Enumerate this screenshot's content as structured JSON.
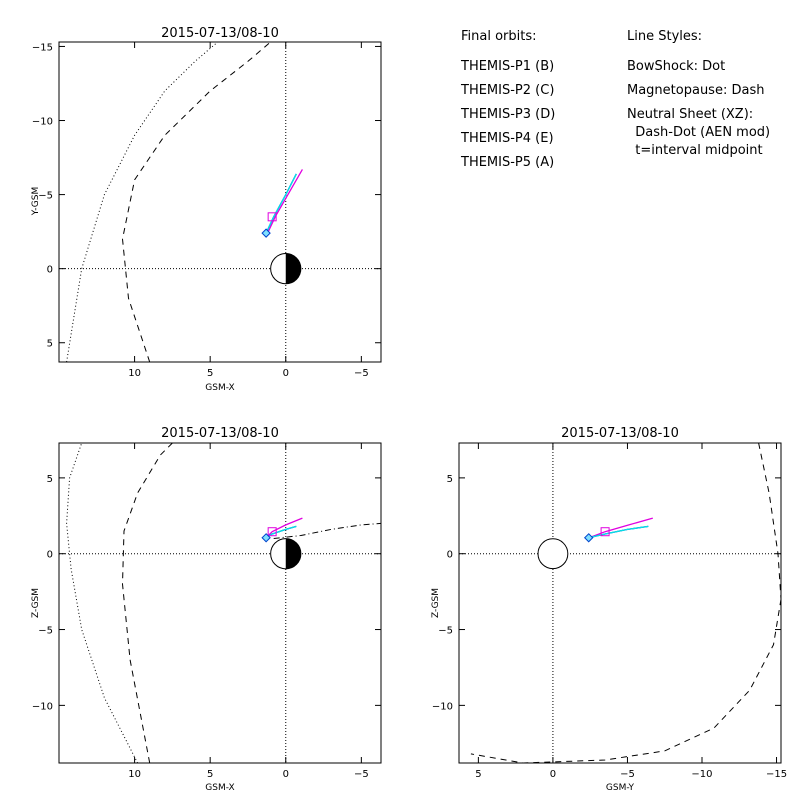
{
  "legend": {
    "orbits_header": "Final orbits:",
    "orbits": [
      {
        "label": "THEMIS-P1 (B)",
        "color": "#ff0000"
      },
      {
        "label": "THEMIS-P2 (C)",
        "color": "#00cc00"
      },
      {
        "label": "THEMIS-P3 (D)",
        "color": "#00e5e5"
      },
      {
        "label": "THEMIS-P4 (E)",
        "color": "#0000cc"
      },
      {
        "label": "THEMIS-P5 (A)",
        "color": "#e000e0"
      }
    ],
    "styles_header": "Line Styles:",
    "styles": [
      "BowShock: Dot",
      "Magnetopause: Dash",
      "Neutral Sheet (XZ):",
      "  Dash-Dot (AEN mod)",
      "  t=interval midpoint"
    ]
  },
  "chart_data": [
    {
      "type": "line",
      "title": "2015-07-13/08-10",
      "xlabel": "GSM-X",
      "ylabel": "Y-GSM",
      "xlim": [
        15,
        -6.3
      ],
      "ylim": [
        6.3,
        -15.3
      ],
      "xticks": [
        10,
        5,
        0,
        -5
      ],
      "xtick_labels": [
        "10",
        "5",
        "0",
        "−5"
      ],
      "yticks": [
        -15,
        -10,
        -5,
        0,
        5
      ],
      "ytick_labels": [
        "−15",
        "−10",
        "−5",
        "0",
        "5"
      ],
      "earth": "day-night",
      "boundaries": {
        "bowshock": {
          "x": [
            14.5,
            13.5,
            12,
            10,
            8,
            6,
            4.5
          ],
          "y": [
            6.3,
            0,
            -5,
            -9,
            -12,
            -14,
            -15.3
          ]
        },
        "magnetopause": {
          "x": [
            9,
            10.4,
            10.8,
            10,
            8,
            5,
            2.5,
            1
          ],
          "y": [
            6.3,
            2,
            -2,
            -6,
            -9,
            -12,
            -14,
            -15.3
          ]
        }
      },
      "series": [
        {
          "color": "#e000e0",
          "x": [
            1.2,
            0.7,
            -0.2,
            -1.1
          ],
          "y": [
            -2.4,
            -3.5,
            -5.1,
            -6.7
          ]
        },
        {
          "color": "#0000cc",
          "x": [
            1.3,
            0.8,
            0,
            -0.7
          ],
          "y": [
            -2.4,
            -3.5,
            -5,
            -6.4
          ]
        },
        {
          "color": "#00e5e5",
          "x": [
            1.3,
            0.8,
            0,
            -0.7
          ],
          "y": [
            -2.4,
            -3.5,
            -5,
            -6.4
          ]
        }
      ],
      "markers": [
        {
          "shape": "square",
          "color": "#e000e0",
          "x": 0.9,
          "y": -3.5
        },
        {
          "shape": "diamond",
          "color": "#00c0ff",
          "x": 1.3,
          "y": -2.4
        }
      ]
    },
    {
      "type": "line",
      "title": "2015-07-13/08-10",
      "xlabel": "GSM-X",
      "ylabel": "Z-GSM",
      "xlim": [
        15,
        -6.3
      ],
      "ylim": [
        -13.8,
        7.3
      ],
      "xticks": [
        10,
        5,
        0,
        -5
      ],
      "xtick_labels": [
        "10",
        "5",
        "0",
        "−5"
      ],
      "yticks": [
        5,
        0,
        -5,
        -10
      ],
      "ytick_labels": [
        "5",
        "0",
        "−5",
        "−10"
      ],
      "earth": "day-night",
      "boundaries": {
        "bowshock": {
          "x": [
            9.8,
            12,
            13.5,
            14.2,
            14.5,
            14.3,
            13.5
          ],
          "y": [
            -13.8,
            -9.5,
            -5,
            -1,
            2,
            5,
            7.3
          ]
        },
        "magnetopause": {
          "x": [
            9,
            10.3,
            10.8,
            10.7,
            9.8,
            8.3,
            7.5
          ],
          "y": [
            -13.8,
            -7,
            -2,
            1.5,
            4,
            6.5,
            7.3
          ]
        },
        "neutral_sheet": {
          "x": [
            0.8,
            -1,
            -3,
            -5,
            -6.3
          ],
          "y": [
            1.0,
            1.2,
            1.6,
            1.9,
            2.0
          ]
        }
      },
      "series": [
        {
          "color": "#e000e0",
          "x": [
            1.3,
            0.9,
            0,
            -1.1
          ],
          "y": [
            1.05,
            1.45,
            1.9,
            2.35
          ]
        },
        {
          "color": "#0000cc",
          "x": [
            1.3,
            0.9,
            0,
            -0.7
          ],
          "y": [
            1.05,
            1.3,
            1.6,
            1.8
          ]
        },
        {
          "color": "#00e5e5",
          "x": [
            1.3,
            0.9,
            0,
            -0.7
          ],
          "y": [
            1.05,
            1.3,
            1.6,
            1.8
          ]
        }
      ],
      "markers": [
        {
          "shape": "square",
          "color": "#e000e0",
          "x": 0.9,
          "y": 1.45
        },
        {
          "shape": "diamond",
          "color": "#00c0ff",
          "x": 1.3,
          "y": 1.05
        }
      ]
    },
    {
      "type": "line",
      "title": "2015-07-13/08-10",
      "xlabel": "GSM-Y",
      "ylabel": "Z-GSM",
      "xlim": [
        6.3,
        -15.3
      ],
      "ylim": [
        -13.8,
        7.3
      ],
      "xticks": [
        5,
        0,
        -5,
        -10,
        -15
      ],
      "xtick_labels": [
        "5",
        "0",
        "−5",
        "−10",
        "−15"
      ],
      "yticks": [
        5,
        0,
        -5,
        -10
      ],
      "ytick_labels": [
        "5",
        "0",
        "−5",
        "−10"
      ],
      "earth": "outline",
      "boundaries": {
        "magnetopause": {
          "x": [
            -13.8,
            -14.5,
            -15.1,
            -15.3
          ],
          "y": [
            7.3,
            4,
            0,
            -3
          ]
        },
        "magnetopause_lower": {
          "x": [
            -15.3,
            -14.8,
            -13.2,
            -10.8,
            -7.5,
            -3.5,
            2,
            5.5
          ],
          "y": [
            -3,
            -6,
            -9,
            -11.5,
            -13,
            -13.6,
            -13.8,
            -13.2
          ]
        }
      },
      "series": [
        {
          "color": "#e000e0",
          "x": [
            -2.4,
            -3.5,
            -5.1,
            -6.7
          ],
          "y": [
            1.05,
            1.45,
            1.9,
            2.35
          ]
        },
        {
          "color": "#0000cc",
          "x": [
            -2.4,
            -3.5,
            -5,
            -6.4
          ],
          "y": [
            1.05,
            1.3,
            1.6,
            1.8
          ]
        },
        {
          "color": "#00e5e5",
          "x": [
            -2.4,
            -3.5,
            -5,
            -6.4
          ],
          "y": [
            1.05,
            1.3,
            1.6,
            1.8
          ]
        }
      ],
      "markers": [
        {
          "shape": "square",
          "color": "#e000e0",
          "x": -3.5,
          "y": 1.45
        },
        {
          "shape": "diamond",
          "color": "#00c0ff",
          "x": -2.4,
          "y": 1.05
        }
      ]
    }
  ]
}
